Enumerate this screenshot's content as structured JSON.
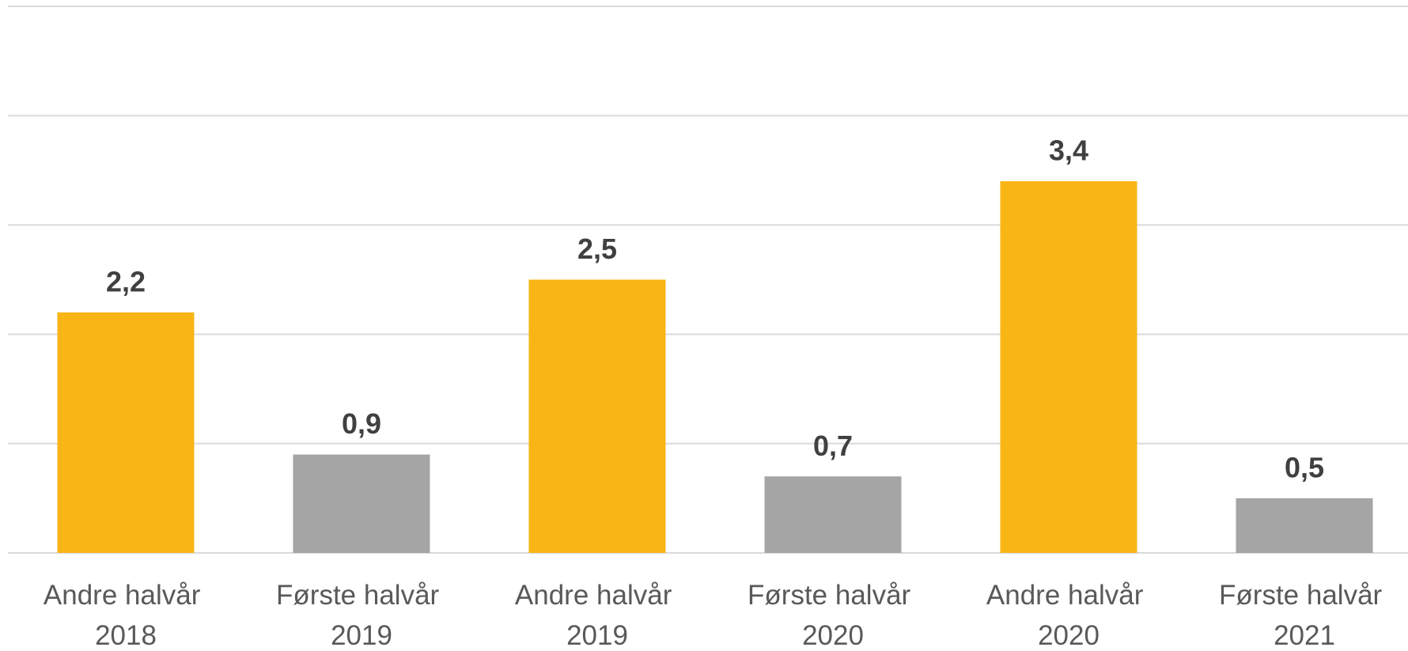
{
  "chart_data": {
    "type": "bar",
    "categories": [
      "Andre halvår 2018",
      "Første halvår 2019",
      "Andre halvår 2019",
      "Første halvår 2020",
      "Andre halvår 2020",
      "Første halvår 2021"
    ],
    "values": [
      2.2,
      0.9,
      2.5,
      0.7,
      3.4,
      0.5
    ],
    "value_labels": [
      "2,2",
      "0,9",
      "2,5",
      "0,7",
      "3,4",
      "0,5"
    ],
    "colors": [
      "#f9b515",
      "#a5a5a5",
      "#f9b515",
      "#a5a5a5",
      "#f9b515",
      "#a5a5a5"
    ],
    "ylim": [
      0,
      5
    ],
    "yticks": [
      0,
      1,
      2,
      3,
      4,
      5
    ],
    "grid": true
  }
}
